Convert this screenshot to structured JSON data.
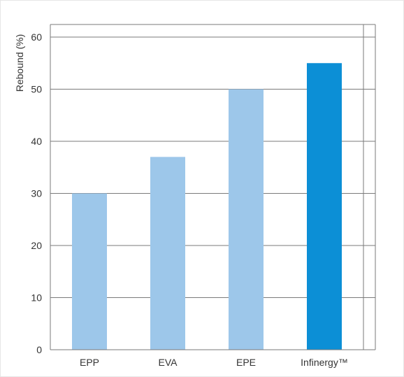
{
  "chart_data": {
    "type": "bar",
    "categories": [
      "EPP",
      "EVA",
      "EPE",
      "Infinergy™"
    ],
    "values": [
      30,
      37,
      50,
      55
    ],
    "ylabel": "Rebound (%)",
    "xlabel": "",
    "title": "",
    "ylim": [
      0,
      60
    ],
    "yticks": [
      0,
      10,
      20,
      30,
      40,
      50,
      60
    ],
    "grid": true,
    "colors": {
      "default_bar": "#9dc7ea",
      "highlight_bar": "#0c8fd6",
      "grid": "#7a7a7a"
    },
    "highlight_index": 3
  }
}
